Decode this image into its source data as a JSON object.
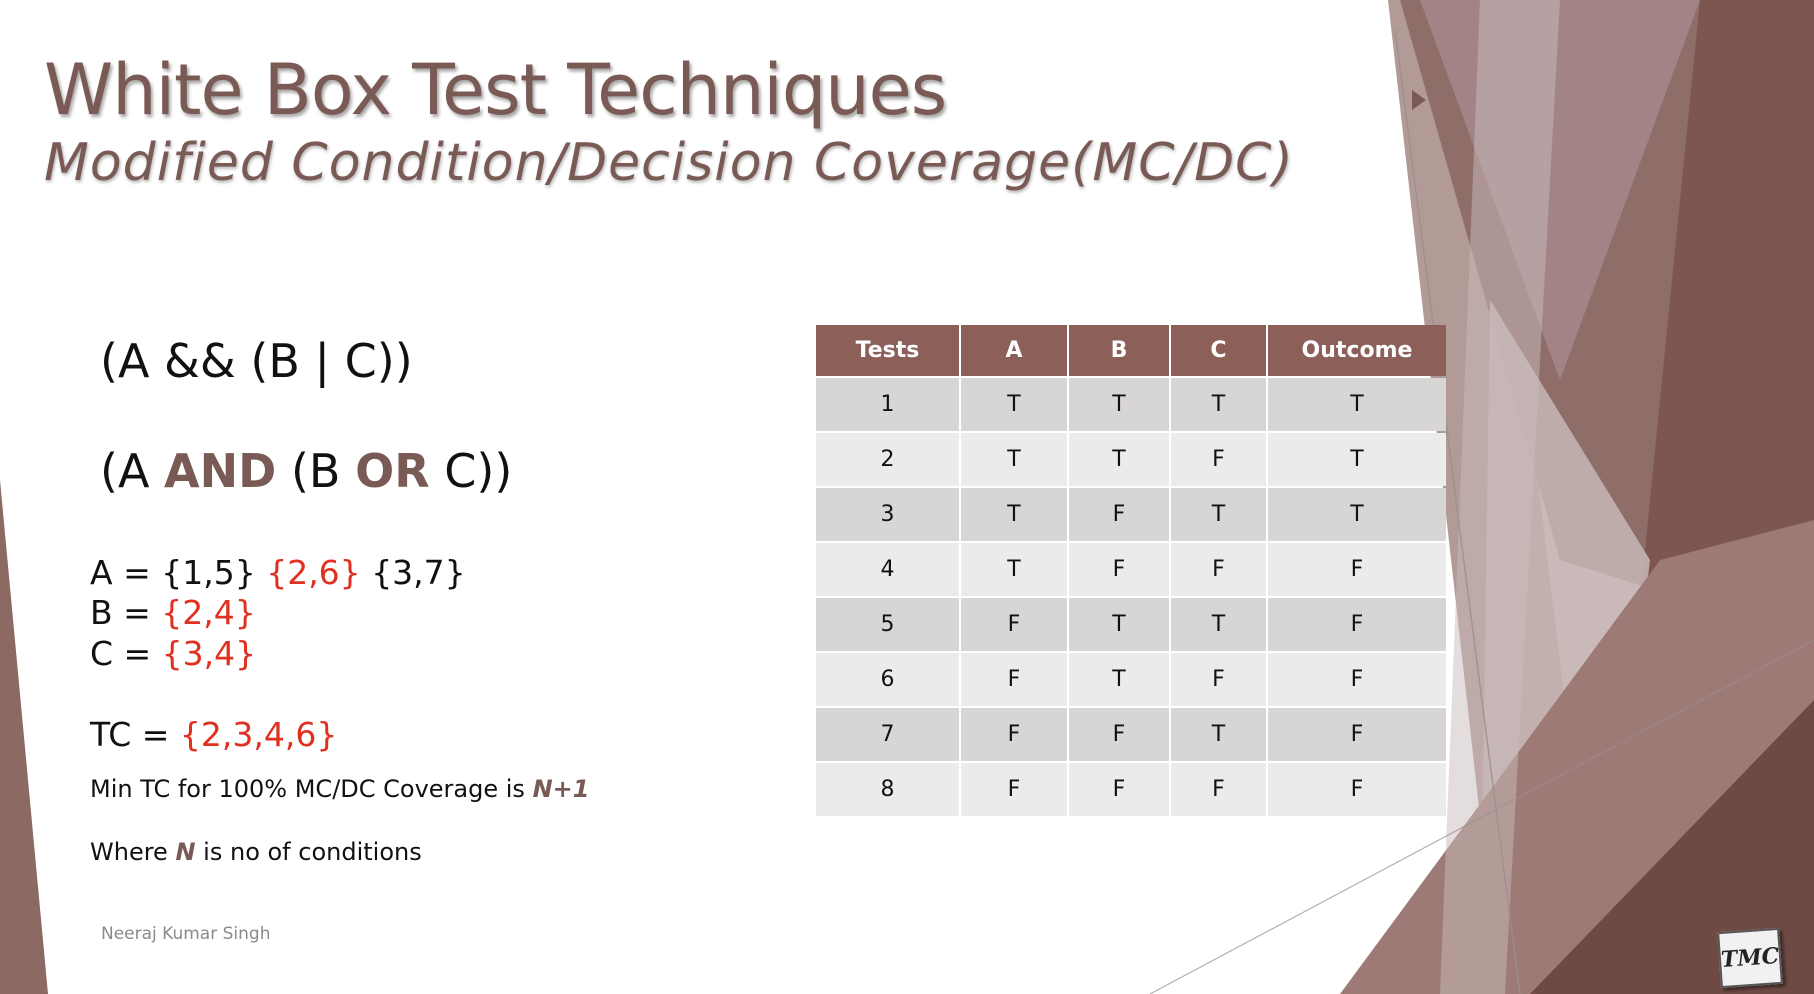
{
  "slide": {
    "title": "White Box Test Techniques",
    "subtitle": "Modified Condition/Decision Coverage(MC/DC)",
    "expr1": "(A && (B | C))",
    "expr2": {
      "open": "(A ",
      "and": "AND",
      "mid": " (B ",
      "or": "OR",
      "close": " C))"
    },
    "sets": {
      "a_prefix": "A = ",
      "a_set1": "{1,5}",
      "a_set2": "{2,6}",
      "a_set3": "{3,7}",
      "b_prefix": "B = ",
      "b_set": "{2,4}",
      "c_prefix": "C = ",
      "c_set": "{3,4}",
      "tc_prefix": "TC = ",
      "tc_set": "{2,3,4,6}"
    },
    "min_note": {
      "text": "Min TC for 100% MC/DC Coverage is ",
      "formula": "N+1"
    },
    "where_note": {
      "prefix": "Where ",
      "var": "N",
      "suffix": " is no of conditions"
    },
    "author": "Neeraj Kumar Singh",
    "logo_text": "TMC"
  },
  "colors": {
    "accent": "#7a5a55",
    "header_bg": "#8c5f59",
    "highlight_red": "#e03020"
  },
  "table": {
    "headers": [
      "Tests",
      "A",
      "B",
      "C",
      "Outcome"
    ],
    "rows": [
      [
        "1",
        "T",
        "T",
        "T",
        "T"
      ],
      [
        "2",
        "T",
        "T",
        "F",
        "T"
      ],
      [
        "3",
        "T",
        "F",
        "T",
        "T"
      ],
      [
        "4",
        "T",
        "F",
        "F",
        "F"
      ],
      [
        "5",
        "F",
        "T",
        "T",
        "F"
      ],
      [
        "6",
        "F",
        "T",
        "F",
        "F"
      ],
      [
        "7",
        "F",
        "F",
        "T",
        "F"
      ],
      [
        "8",
        "F",
        "F",
        "F",
        "F"
      ]
    ]
  }
}
